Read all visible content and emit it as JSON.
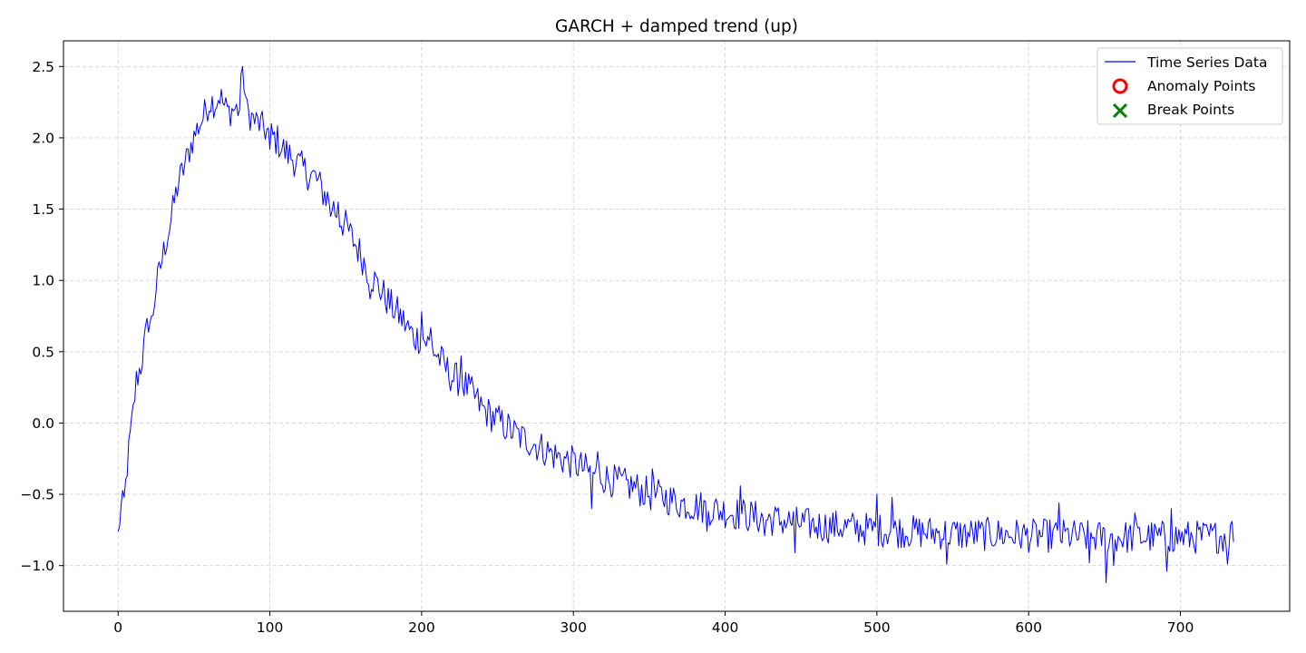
{
  "chart_data": {
    "type": "line",
    "title": "GARCH + damped trend (up)",
    "xlabel": "",
    "ylabel": "",
    "xlim": [
      -36,
      772
    ],
    "ylim": [
      -1.32,
      2.68
    ],
    "x_ticks": [
      0,
      100,
      200,
      300,
      400,
      500,
      600,
      700
    ],
    "x_tick_labels": [
      "0",
      "100",
      "200",
      "300",
      "400",
      "500",
      "600",
      "700"
    ],
    "y_ticks": [
      -1.0,
      -0.5,
      0.0,
      0.5,
      1.0,
      1.5,
      2.0,
      2.5
    ],
    "y_tick_labels": [
      "−1.0",
      "−0.5",
      "0.0",
      "0.5",
      "1.0",
      "1.5",
      "2.0",
      "2.5"
    ],
    "grid": true,
    "legend_position": "top-right",
    "series": [
      {
        "name": "Time Series Data",
        "color": "#0000ff",
        "n_points": 736,
        "noise_amplitude": 0.12,
        "points": [
          [
            0,
            -0.76
          ],
          [
            2,
            -0.6
          ],
          [
            4,
            -0.56
          ],
          [
            6,
            -0.3
          ],
          [
            8,
            -0.1
          ],
          [
            10,
            0.08
          ],
          [
            12,
            0.3
          ],
          [
            15,
            0.4
          ],
          [
            18,
            0.6
          ],
          [
            20,
            0.72
          ],
          [
            22,
            0.7
          ],
          [
            25,
            0.95
          ],
          [
            28,
            1.1
          ],
          [
            31,
            1.25
          ],
          [
            34,
            1.38
          ],
          [
            37,
            1.55
          ],
          [
            40,
            1.7
          ],
          [
            43,
            1.78
          ],
          [
            46,
            1.88
          ],
          [
            49,
            1.98
          ],
          [
            52,
            2.06
          ],
          [
            55,
            2.12
          ],
          [
            58,
            2.2
          ],
          [
            61,
            2.26
          ],
          [
            64,
            2.24
          ],
          [
            67,
            2.3
          ],
          [
            70,
            2.22
          ],
          [
            73,
            2.18
          ],
          [
            76,
            2.2
          ],
          [
            80,
            2.2
          ],
          [
            82,
            2.5
          ],
          [
            85,
            2.18
          ],
          [
            90,
            2.12
          ],
          [
            95,
            2.08
          ],
          [
            100,
            2.02
          ],
          [
            105,
            1.98
          ],
          [
            110,
            1.9
          ],
          [
            115,
            1.86
          ],
          [
            120,
            1.8
          ],
          [
            125,
            1.75
          ],
          [
            130,
            1.72
          ],
          [
            135,
            1.62
          ],
          [
            140,
            1.55
          ],
          [
            145,
            1.45
          ],
          [
            150,
            1.38
          ],
          [
            155,
            1.28
          ],
          [
            160,
            1.18
          ],
          [
            165,
            1.06
          ],
          [
            170,
            0.98
          ],
          [
            175,
            0.9
          ],
          [
            180,
            0.82
          ],
          [
            185,
            0.76
          ],
          [
            190,
            0.68
          ],
          [
            195,
            0.6
          ],
          [
            200,
            0.6
          ],
          [
            205,
            0.55
          ],
          [
            210,
            0.48
          ],
          [
            215,
            0.4
          ],
          [
            220,
            0.32
          ],
          [
            225,
            0.3
          ],
          [
            230,
            0.25
          ],
          [
            235,
            0.18
          ],
          [
            240,
            0.1
          ],
          [
            245,
            0.06
          ],
          [
            250,
            0.02
          ],
          [
            255,
            -0.02
          ],
          [
            260,
            -0.06
          ],
          [
            265,
            -0.1
          ],
          [
            270,
            -0.12
          ],
          [
            275,
            -0.15
          ],
          [
            280,
            -0.18
          ],
          [
            290,
            -0.24
          ],
          [
            300,
            -0.28
          ],
          [
            310,
            -0.34
          ],
          [
            320,
            -0.38
          ],
          [
            330,
            -0.42
          ],
          [
            340,
            -0.45
          ],
          [
            350,
            -0.5
          ],
          [
            360,
            -0.52
          ],
          [
            370,
            -0.56
          ],
          [
            380,
            -0.58
          ],
          [
            390,
            -0.6
          ],
          [
            400,
            -0.62
          ],
          [
            420,
            -0.66
          ],
          [
            440,
            -0.69
          ],
          [
            460,
            -0.72
          ],
          [
            480,
            -0.73
          ],
          [
            500,
            -0.75
          ],
          [
            520,
            -0.76
          ],
          [
            540,
            -0.77
          ],
          [
            560,
            -0.78
          ],
          [
            580,
            -0.78
          ],
          [
            600,
            -0.79
          ],
          [
            620,
            -0.79
          ],
          [
            640,
            -0.8
          ],
          [
            660,
            -0.8
          ],
          [
            680,
            -0.8
          ],
          [
            700,
            -0.8
          ],
          [
            720,
            -0.8
          ],
          [
            735,
            -0.78
          ]
        ],
        "spikes": [
          [
            82,
            2.5
          ],
          [
            100,
            1.92
          ],
          [
            145,
            1.55
          ],
          [
            140,
            1.45
          ],
          [
            166,
            0.87
          ],
          [
            200,
            0.78
          ],
          [
            206,
            0.67
          ],
          [
            226,
            0.47
          ],
          [
            312,
            -0.6
          ],
          [
            316,
            -0.2
          ],
          [
            352,
            -0.32
          ],
          [
            388,
            -0.76
          ],
          [
            410,
            -0.44
          ],
          [
            426,
            -0.79
          ],
          [
            446,
            -0.91
          ],
          [
            500,
            -0.5
          ],
          [
            510,
            -0.52
          ],
          [
            546,
            -0.99
          ],
          [
            620,
            -0.56
          ],
          [
            640,
            -0.98
          ],
          [
            651,
            -1.12
          ],
          [
            656,
            -1.0
          ],
          [
            670,
            -0.63
          ],
          [
            691,
            -1.04
          ],
          [
            694,
            -0.6
          ],
          [
            731,
            -0.99
          ],
          [
            734,
            -0.69
          ],
          [
            736,
            -0.7
          ]
        ]
      }
    ],
    "legend": [
      {
        "label": "Time Series Data",
        "marker": "line",
        "color": "#0000ff"
      },
      {
        "label": "Anomaly Points",
        "marker": "circle",
        "color": "#ff0000"
      },
      {
        "label": "Break Points",
        "marker": "x",
        "color": "#008000"
      }
    ]
  }
}
